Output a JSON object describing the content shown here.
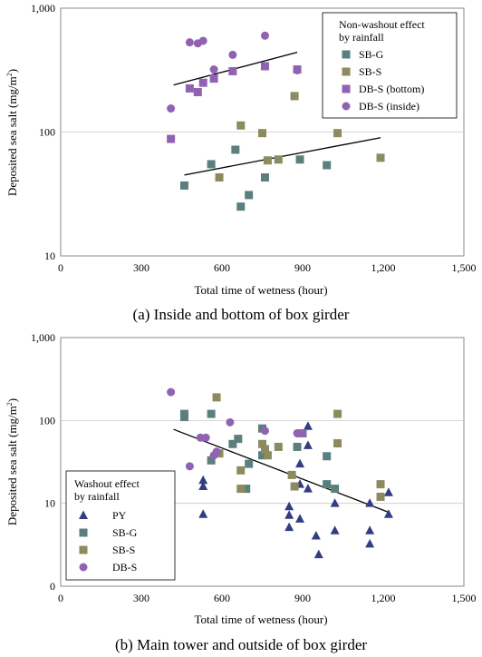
{
  "colors": {
    "SB-G": "#5b7f7e",
    "SB-S": "#8c8a5e",
    "DB-S": "#9162b2",
    "PY": "#333d82",
    "axis": "#888888",
    "grid": "#cccccc",
    "trend": "#000000"
  },
  "chart_data": [
    {
      "type": "scatter",
      "caption": "(a) Inside and bottom of box girder",
      "xlabel": "Total time of wetness (hour)",
      "ylabel_text": "Deposited sea salt (mg/m",
      "ylabel_sup": "2",
      "ylabel_close": ")",
      "xlim": [
        0,
        1500
      ],
      "ylim": [
        10,
        1000
      ],
      "yscale": "log",
      "xticks": [
        0,
        300,
        600,
        900,
        1200,
        1500
      ],
      "xtick_labels": [
        "0",
        "300",
        "600",
        "900",
        "1,200",
        "1,500"
      ],
      "yticks": [
        10,
        100,
        1000
      ],
      "ytick_labels": [
        "10",
        "100",
        "1,000"
      ],
      "legend_title": [
        "Non-washout effect",
        "by rainfall"
      ],
      "legend_position": "top-right",
      "series": [
        {
          "name": "SB-G",
          "marker": "square",
          "color": "#5b7f7e",
          "points": [
            [
              460,
              37
            ],
            [
              560,
              55
            ],
            [
              650,
              72
            ],
            [
              670,
              25
            ],
            [
              700,
              31
            ],
            [
              760,
              43
            ],
            [
              890,
              60
            ],
            [
              990,
              54
            ]
          ]
        },
        {
          "name": "SB-S",
          "marker": "square",
          "color": "#8c8a5e",
          "points": [
            [
              590,
              43
            ],
            [
              670,
              113
            ],
            [
              750,
              98
            ],
            [
              770,
              59
            ],
            [
              810,
              60
            ],
            [
              870,
              195
            ],
            [
              1030,
              98
            ],
            [
              1190,
              62
            ]
          ]
        },
        {
          "name": "DB-S (bottom)",
          "marker": "square",
          "color": "#9162b2",
          "points": [
            [
              410,
              88
            ],
            [
              480,
              225
            ],
            [
              510,
              210
            ],
            [
              530,
              250
            ],
            [
              570,
              270
            ],
            [
              640,
              310
            ],
            [
              760,
              340
            ],
            [
              880,
              320
            ]
          ]
        },
        {
          "name": "DB-S (inside)",
          "marker": "circle",
          "color": "#9162b2",
          "points": [
            [
              410,
              155
            ],
            [
              480,
              530
            ],
            [
              510,
              520
            ],
            [
              530,
              545
            ],
            [
              570,
              320
            ],
            [
              640,
              420
            ],
            [
              760,
              600
            ],
            [
              880,
              315
            ]
          ]
        }
      ],
      "trendlines": [
        {
          "from": [
            420,
            240
          ],
          "to": [
            880,
            440
          ]
        },
        {
          "from": [
            460,
            45
          ],
          "to": [
            1190,
            90
          ]
        }
      ]
    },
    {
      "type": "scatter",
      "caption": "(b) Main tower and outside of box girder",
      "xlabel": "Total time of wetness (hour)",
      "ylabel_text": "Deposited sea salt (mg/m",
      "ylabel_sup": "2",
      "ylabel_close": ")",
      "xlim": [
        0,
        1500
      ],
      "ylim": [
        0,
        1000
      ],
      "yscale": "log-with-zero",
      "xticks": [
        0,
        300,
        600,
        900,
        1200,
        1500
      ],
      "xtick_labels": [
        "0",
        "300",
        "600",
        "900",
        "1,200",
        "1,500"
      ],
      "yticks": [
        0,
        10,
        100,
        1000
      ],
      "ytick_labels": [
        "0",
        "10",
        "100",
        "1,000"
      ],
      "legend_title": [
        "Washout effect",
        "by rainfall"
      ],
      "legend_position": "bottom-left",
      "series": [
        {
          "name": "PY",
          "marker": "triangle",
          "color": "#333d82",
          "points": [
            [
              530,
              19
            ],
            [
              530,
              16
            ],
            [
              530,
              7
            ],
            [
              850,
              9
            ],
            [
              850,
              6.8
            ],
            [
              850,
              4.5
            ],
            [
              890,
              30
            ],
            [
              890,
              17
            ],
            [
              890,
              6
            ],
            [
              920,
              85
            ],
            [
              920,
              50
            ],
            [
              920,
              15
            ],
            [
              950,
              3.3
            ],
            [
              960,
              1.5
            ],
            [
              1020,
              10
            ],
            [
              1020,
              4
            ],
            [
              1150,
              10
            ],
            [
              1150,
              4
            ],
            [
              1150,
              2.4
            ],
            [
              1220,
              13.5
            ],
            [
              1220,
              7
            ]
          ]
        },
        {
          "name": "SB-G",
          "marker": "square",
          "color": "#5b7f7e",
          "points": [
            [
              460,
              120
            ],
            [
              460,
              110
            ],
            [
              560,
              120
            ],
            [
              560,
              33
            ],
            [
              640,
              52
            ],
            [
              660,
              60
            ],
            [
              690,
              15
            ],
            [
              700,
              30
            ],
            [
              750,
              80
            ],
            [
              750,
              38
            ],
            [
              880,
              48
            ],
            [
              900,
              70
            ],
            [
              990,
              37
            ],
            [
              990,
              17
            ],
            [
              1020,
              15
            ]
          ]
        },
        {
          "name": "SB-S",
          "marker": "square",
          "color": "#8c8a5e",
          "points": [
            [
              580,
              190
            ],
            [
              590,
              40
            ],
            [
              670,
              25
            ],
            [
              670,
              15
            ],
            [
              750,
              52
            ],
            [
              760,
              45
            ],
            [
              770,
              38
            ],
            [
              810,
              48
            ],
            [
              860,
              22
            ],
            [
              870,
              16
            ],
            [
              890,
              70
            ],
            [
              1030,
              120
            ],
            [
              1030,
              53
            ],
            [
              1190,
              17
            ],
            [
              1190,
              12
            ]
          ]
        },
        {
          "name": "DB-S",
          "marker": "circle",
          "color": "#9162b2",
          "points": [
            [
              410,
              220
            ],
            [
              480,
              28
            ],
            [
              520,
              62
            ],
            [
              540,
              62
            ],
            [
              570,
              38
            ],
            [
              580,
              42
            ],
            [
              630,
              95
            ],
            [
              760,
              75
            ],
            [
              880,
              70
            ],
            [
              900,
              70
            ]
          ]
        }
      ],
      "trendlines": [
        {
          "from": [
            420,
            78
          ],
          "to": [
            1220,
            7.5
          ]
        }
      ]
    }
  ]
}
